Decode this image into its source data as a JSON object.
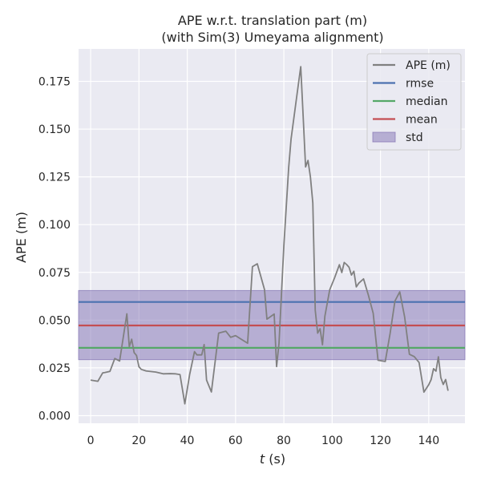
{
  "chart_data": {
    "type": "line",
    "title": [
      "APE w.r.t. translation part (m)",
      "(with Sim(3) Umeyama alignment)"
    ],
    "xlabel_italic": "t",
    "xlabel_rest": " (s)",
    "ylabel": "APE (m)",
    "xlim": [
      -5,
      155
    ],
    "ylim": [
      -0.004,
      0.192
    ],
    "xticks": [
      0,
      20,
      40,
      60,
      80,
      100,
      120,
      140
    ],
    "xtick_labels": [
      "0",
      "20",
      "40",
      "60",
      "80",
      "100",
      "120",
      "140"
    ],
    "yticks": [
      0.0,
      0.025,
      0.05,
      0.075,
      0.1,
      0.125,
      0.15,
      0.175
    ],
    "ytick_labels": [
      "0.000",
      "0.025",
      "0.050",
      "0.075",
      "0.100",
      "0.125",
      "0.150",
      "0.175"
    ],
    "grid": true,
    "legend_position": "top-right",
    "colors": {
      "background": "#eaeaf2",
      "grid": "#ffffff",
      "ape": "#808080",
      "rmse": "#4c72b0",
      "median": "#55a868",
      "mean": "#c44e52",
      "std": "#8172b3"
    },
    "stats": {
      "rmse": 0.0595,
      "median": 0.0355,
      "mean": 0.0472,
      "std_low": 0.0293,
      "std_high": 0.0655
    },
    "series": [
      {
        "name": "APE (m)",
        "x": [
          0,
          3,
          5,
          6,
          8,
          10,
          12,
          15,
          16,
          17,
          18,
          19,
          20,
          21,
          23,
          27,
          30,
          33,
          35,
          37,
          39,
          41,
          43,
          44,
          46,
          47,
          48,
          50,
          52,
          53,
          56,
          58,
          60,
          62,
          65,
          67,
          69,
          72,
          73,
          76,
          77,
          78,
          80,
          82,
          83,
          85,
          87,
          88,
          89,
          90,
          91,
          92,
          93,
          94,
          95,
          96,
          97,
          99,
          101,
          103,
          104,
          105,
          106,
          107,
          108,
          109,
          110,
          111,
          113,
          115,
          117,
          119,
          120,
          122,
          124,
          126,
          128,
          130,
          132,
          134,
          136,
          138,
          140,
          141,
          142,
          143,
          144,
          145,
          146,
          147,
          148
        ],
        "y": [
          0.0186,
          0.018,
          0.0224,
          0.0226,
          0.0232,
          0.0299,
          0.0286,
          0.0533,
          0.0361,
          0.04,
          0.033,
          0.0315,
          0.0256,
          0.0242,
          0.0234,
          0.0228,
          0.0219,
          0.022,
          0.0219,
          0.0215,
          0.0062,
          0.0215,
          0.0335,
          0.0318,
          0.0318,
          0.0372,
          0.0186,
          0.0124,
          0.0329,
          0.0432,
          0.0442,
          0.041,
          0.0419,
          0.0403,
          0.0379,
          0.078,
          0.0795,
          0.066,
          0.0505,
          0.0532,
          0.0257,
          0.0379,
          0.0887,
          0.1298,
          0.1449,
          0.1639,
          0.1827,
          0.1567,
          0.1302,
          0.1336,
          0.125,
          0.1114,
          0.0552,
          0.0432,
          0.0455,
          0.0371,
          0.0521,
          0.0659,
          0.0721,
          0.079,
          0.0749,
          0.0802,
          0.0791,
          0.0777,
          0.0736,
          0.0756,
          0.0674,
          0.0693,
          0.0716,
          0.0631,
          0.0536,
          0.029,
          0.0288,
          0.0284,
          0.043,
          0.06,
          0.0648,
          0.0518,
          0.0321,
          0.0309,
          0.0278,
          0.0123,
          0.0162,
          0.0189,
          0.0246,
          0.0233,
          0.0308,
          0.0199,
          0.0163,
          0.0189,
          0.013
        ]
      }
    ],
    "legend": [
      {
        "key": "ape",
        "label": "APE (m)",
        "kind": "line"
      },
      {
        "key": "rmse",
        "label": "rmse",
        "kind": "line"
      },
      {
        "key": "median",
        "label": "median",
        "kind": "line"
      },
      {
        "key": "mean",
        "label": "mean",
        "kind": "line"
      },
      {
        "key": "std",
        "label": "std",
        "kind": "patch"
      }
    ]
  }
}
